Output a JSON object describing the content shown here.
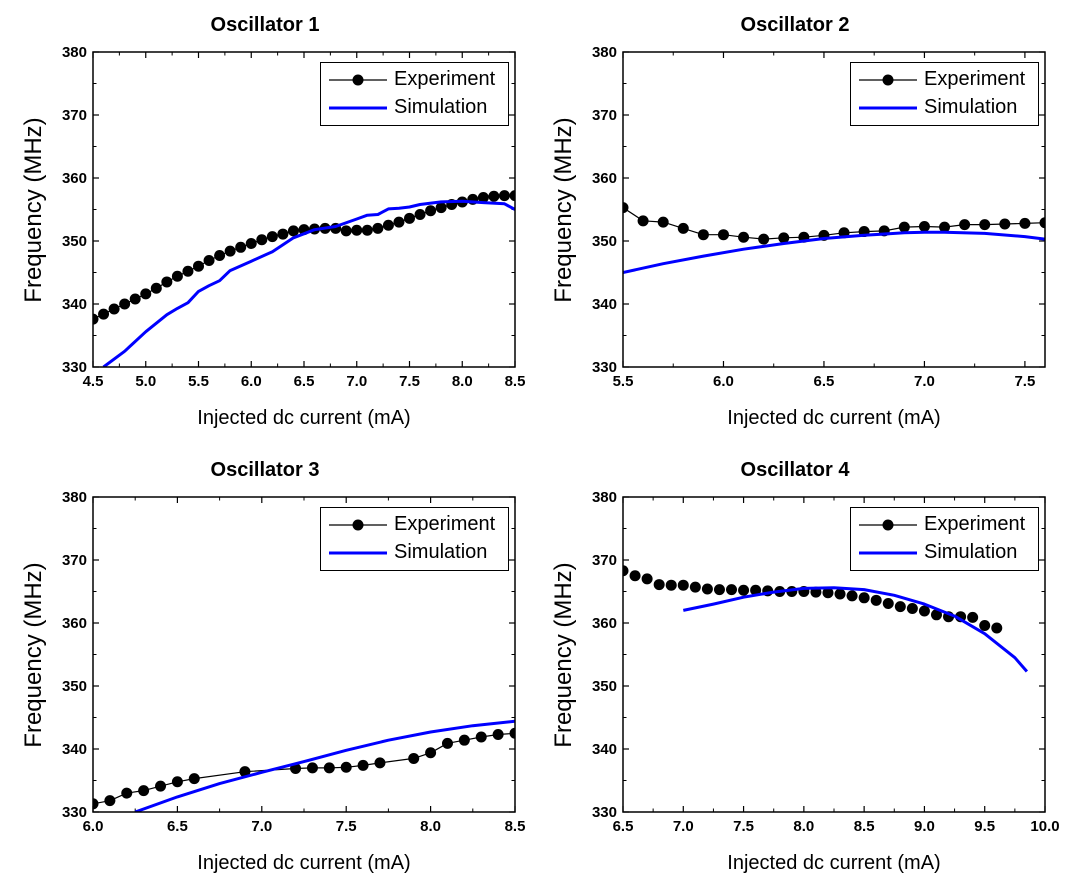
{
  "legend": {
    "experiment": "Experiment",
    "simulation": "Simulation"
  },
  "colors": {
    "experiment": "#000000",
    "simulation": "#0000ff"
  },
  "chart_data": [
    {
      "type": "line",
      "title": "Oscillator 1",
      "xlabel": "Injected dc current (mA)",
      "ylabel": "Frequency (MHz)",
      "xlim": [
        4.5,
        8.5
      ],
      "ylim": [
        330,
        380
      ],
      "x_ticks": [
        "4.5",
        "5.0",
        "5.5",
        "6.0",
        "6.5",
        "7.0",
        "7.5",
        "8.0",
        "8.5"
      ],
      "y_ticks": [
        "330",
        "340",
        "350",
        "360",
        "370",
        "380"
      ],
      "legend_position": "top-right",
      "series": [
        {
          "name": "Experiment",
          "style": "line-markers",
          "x": [
            4.5,
            4.6,
            4.7,
            4.8,
            4.9,
            5.0,
            5.1,
            5.2,
            5.3,
            5.4,
            5.5,
            5.6,
            5.7,
            5.8,
            5.9,
            6.0,
            6.1,
            6.2,
            6.3,
            6.4,
            6.5,
            6.6,
            6.7,
            6.8,
            6.9,
            7.0,
            7.1,
            7.2,
            7.3,
            7.4,
            7.5,
            7.6,
            7.7,
            7.8,
            7.9,
            8.0,
            8.1,
            8.2,
            8.3,
            8.4,
            8.5
          ],
          "y": [
            337.6,
            338.4,
            339.2,
            340.0,
            340.8,
            341.6,
            342.5,
            343.5,
            344.4,
            345.2,
            346.0,
            346.9,
            347.7,
            348.4,
            349.0,
            349.6,
            350.2,
            350.7,
            351.1,
            351.6,
            351.8,
            351.9,
            352.0,
            352.0,
            351.6,
            351.7,
            351.7,
            352.0,
            352.5,
            353.0,
            353.6,
            354.2,
            354.8,
            355.3,
            355.8,
            356.2,
            356.6,
            356.9,
            357.1,
            357.2,
            357.2
          ]
        },
        {
          "name": "Simulation",
          "style": "line",
          "x": [
            4.6,
            4.8,
            5.0,
            5.2,
            5.3,
            5.4,
            5.5,
            5.6,
            5.7,
            5.8,
            6.0,
            6.2,
            6.4,
            6.6,
            6.8,
            7.0,
            7.1,
            7.2,
            7.3,
            7.4,
            7.5,
            7.6,
            7.8,
            8.0,
            8.2,
            8.4,
            8.5
          ],
          "y": [
            330.0,
            332.5,
            335.6,
            338.3,
            339.3,
            340.2,
            342.0,
            342.9,
            343.7,
            345.3,
            346.8,
            348.3,
            350.5,
            351.8,
            352.3,
            353.5,
            354.1,
            354.2,
            355.1,
            355.2,
            355.4,
            355.8,
            356.2,
            356.3,
            356.1,
            355.9,
            355.0
          ]
        }
      ]
    },
    {
      "type": "line",
      "title": "Oscillator 2",
      "xlabel": "Injected dc current (mA)",
      "ylabel": "Frequency (MHz)",
      "xlim": [
        5.5,
        7.6
      ],
      "ylim": [
        330,
        380
      ],
      "x_ticks": [
        "5.5",
        "6.0",
        "6.5",
        "7.0",
        "7.5"
      ],
      "y_ticks": [
        "330",
        "340",
        "350",
        "360",
        "370",
        "380"
      ],
      "legend_position": "top-right",
      "series": [
        {
          "name": "Experiment",
          "style": "line-markers",
          "x": [
            5.5,
            5.6,
            5.7,
            5.8,
            5.9,
            6.0,
            6.1,
            6.2,
            6.3,
            6.4,
            6.5,
            6.6,
            6.7,
            6.8,
            6.9,
            7.0,
            7.1,
            7.2,
            7.3,
            7.4,
            7.5,
            7.6
          ],
          "y": [
            355.3,
            353.2,
            353.0,
            352.0,
            351.0,
            351.0,
            350.6,
            350.3,
            350.5,
            350.6,
            350.9,
            351.3,
            351.5,
            351.6,
            352.2,
            352.3,
            352.2,
            352.6,
            352.6,
            352.7,
            352.8,
            352.9
          ]
        },
        {
          "name": "Simulation",
          "style": "line",
          "x": [
            5.5,
            5.7,
            5.9,
            6.1,
            6.3,
            6.5,
            6.7,
            6.9,
            7.0,
            7.1,
            7.3,
            7.5,
            7.6
          ],
          "y": [
            345.0,
            346.4,
            347.6,
            348.7,
            349.6,
            350.4,
            350.9,
            351.3,
            351.4,
            351.4,
            351.2,
            350.7,
            350.3
          ]
        }
      ]
    },
    {
      "type": "line",
      "title": "Oscillator 3",
      "xlabel": "Injected dc current (mA)",
      "ylabel": "Frequency (MHz)",
      "xlim": [
        6.0,
        8.5
      ],
      "ylim": [
        330,
        380
      ],
      "x_ticks": [
        "6.0",
        "6.5",
        "7.0",
        "7.5",
        "8.0",
        "8.5"
      ],
      "y_ticks": [
        "330",
        "340",
        "350",
        "360",
        "370",
        "380"
      ],
      "legend_position": "top-right",
      "series": [
        {
          "name": "Experiment",
          "style": "line-markers",
          "x": [
            6.0,
            6.1,
            6.2,
            6.3,
            6.4,
            6.5,
            6.6,
            6.9,
            7.2,
            7.3,
            7.4,
            7.5,
            7.6,
            7.7,
            7.9,
            8.0,
            8.1,
            8.2,
            8.3,
            8.4,
            8.5
          ],
          "y": [
            331.3,
            331.8,
            333.0,
            333.4,
            334.1,
            334.8,
            335.3,
            336.4,
            336.9,
            337.0,
            337.0,
            337.1,
            337.4,
            337.8,
            338.5,
            339.4,
            340.9,
            341.4,
            341.9,
            342.3,
            342.5
          ]
        },
        {
          "name": "Simulation",
          "style": "line",
          "x": [
            6.25,
            6.5,
            6.75,
            7.0,
            7.25,
            7.5,
            7.75,
            8.0,
            8.25,
            8.5
          ],
          "y": [
            330.0,
            332.4,
            334.5,
            336.3,
            338.0,
            339.8,
            341.4,
            342.7,
            343.7,
            344.4
          ]
        }
      ]
    },
    {
      "type": "line",
      "title": "Oscillator 4",
      "xlabel": "Injected dc current (mA)",
      "ylabel": "Frequency (MHz)",
      "xlim": [
        6.5,
        10.0
      ],
      "ylim": [
        330,
        380
      ],
      "x_ticks": [
        "6.5",
        "7.0",
        "7.5",
        "8.0",
        "8.5",
        "9.0",
        "9.5",
        "10.0"
      ],
      "y_ticks": [
        "330",
        "340",
        "350",
        "360",
        "370",
        "380"
      ],
      "legend_position": "top-right",
      "series": [
        {
          "name": "Experiment",
          "style": "markers",
          "x": [
            6.5,
            6.6,
            6.7,
            6.8,
            6.9,
            7.0,
            7.1,
            7.2,
            7.3,
            7.4,
            7.5,
            7.6,
            7.7,
            7.8,
            7.9,
            8.0,
            8.1,
            8.2,
            8.3,
            8.4,
            8.5,
            8.6,
            8.7,
            8.8,
            8.9,
            9.0,
            9.1,
            9.2,
            9.3,
            9.4,
            9.5,
            9.6
          ],
          "y": [
            368.3,
            367.5,
            367.0,
            366.1,
            366.0,
            366.0,
            365.7,
            365.4,
            365.3,
            365.3,
            365.2,
            365.2,
            365.1,
            365.0,
            365.0,
            365.0,
            364.9,
            364.8,
            364.6,
            364.3,
            364.0,
            363.6,
            363.1,
            362.6,
            362.3,
            361.9,
            361.3,
            361.0,
            361.0,
            360.9,
            359.6,
            359.2
          ]
        },
        {
          "name": "Simulation",
          "style": "line",
          "x": [
            7.0,
            7.25,
            7.5,
            7.75,
            8.0,
            8.25,
            8.5,
            8.75,
            9.0,
            9.25,
            9.5,
            9.75,
            9.85
          ],
          "y": [
            362.0,
            363.0,
            364.1,
            364.9,
            365.5,
            365.6,
            365.3,
            364.4,
            363.0,
            361.1,
            358.3,
            354.5,
            352.3
          ]
        }
      ]
    }
  ]
}
